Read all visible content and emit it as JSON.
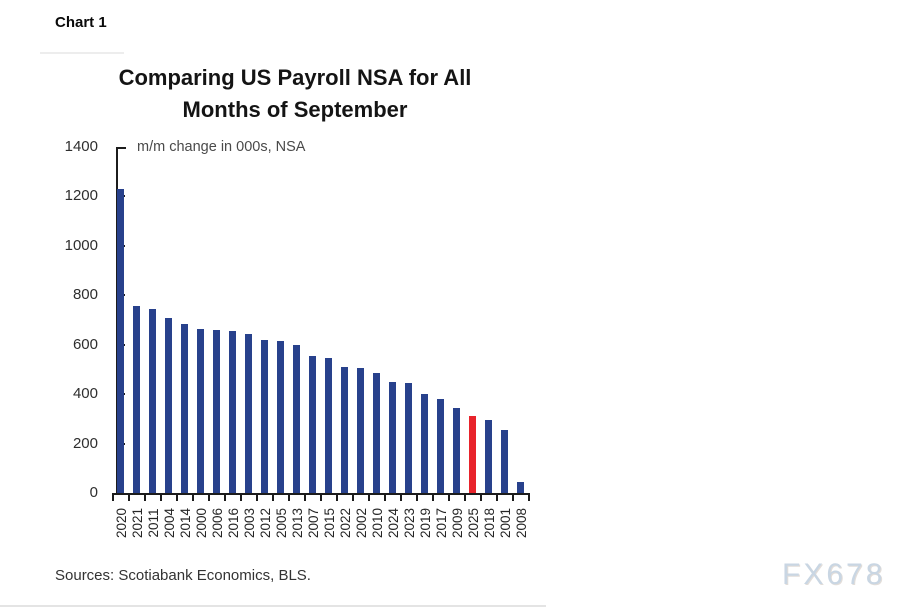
{
  "page": {
    "chart_label": "Chart 1",
    "sources": "Sources: Scotiabank Economics, BLS.",
    "watermark": "FX678"
  },
  "chart_data": {
    "type": "bar",
    "title_line1": "Comparing US Payroll NSA for All",
    "title_line2": "Months of September",
    "subtitle": "m/m change in 000s, NSA",
    "xlabel": "",
    "ylabel": "m/m change in 000s, NSA",
    "categories": [
      "2020",
      "2021",
      "2011",
      "2004",
      "2014",
      "2000",
      "2006",
      "2016",
      "2003",
      "2012",
      "2005",
      "2013",
      "2007",
      "2015",
      "2022",
      "2002",
      "2010",
      "2024",
      "2023",
      "2019",
      "2017",
      "2009",
      "2025",
      "2018",
      "2001",
      "2008"
    ],
    "values": [
      1230,
      755,
      745,
      710,
      685,
      665,
      660,
      655,
      645,
      620,
      615,
      600,
      555,
      545,
      510,
      505,
      485,
      450,
      445,
      400,
      380,
      345,
      310,
      295,
      255,
      45
    ],
    "highlight_category": "2025",
    "bar_color": "#28418c",
    "highlight_color": "#e8232b",
    "ylim": [
      0,
      1400
    ],
    "yticks": [
      0,
      200,
      400,
      600,
      800,
      1000,
      1200,
      1400
    ],
    "grid": "off",
    "legend": "none"
  }
}
